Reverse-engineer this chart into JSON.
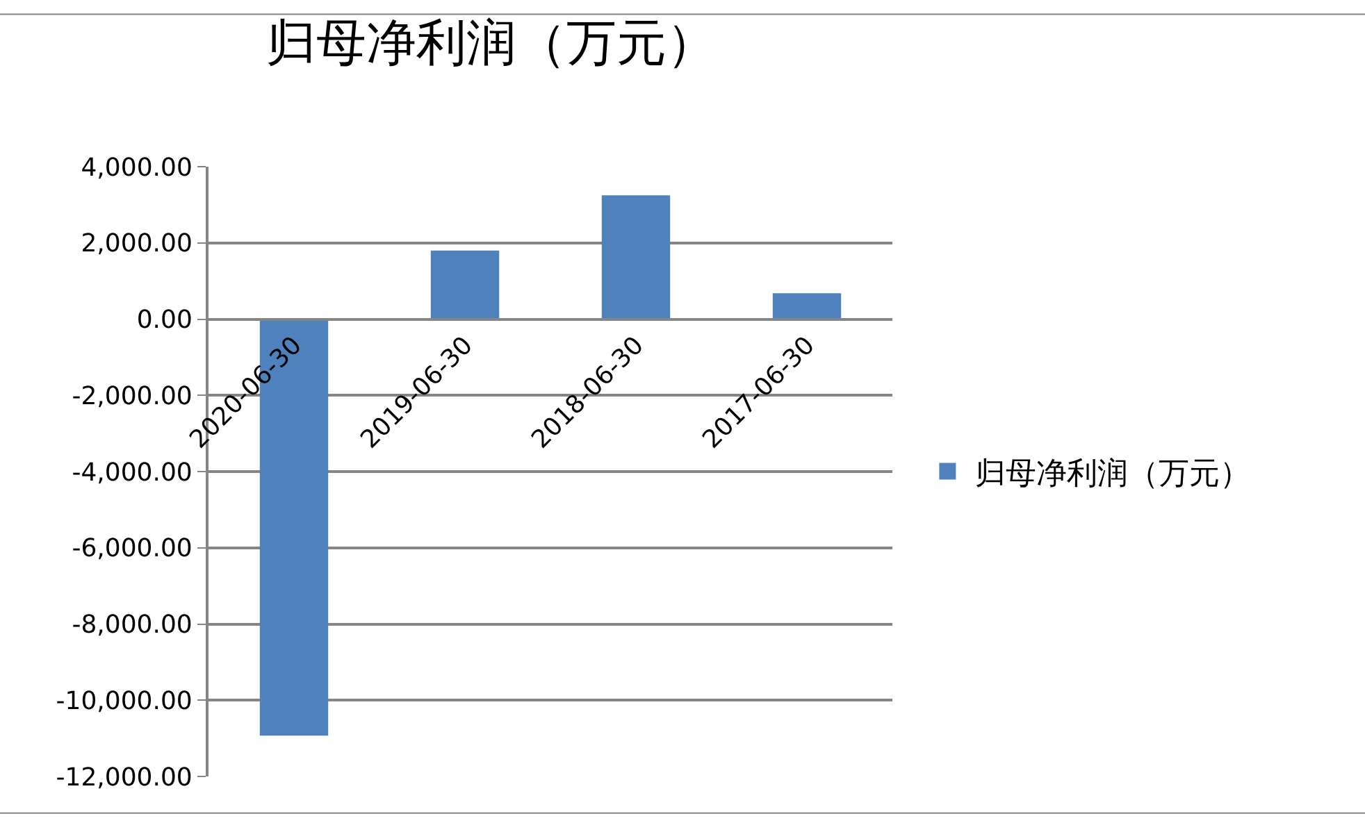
{
  "chart_data": {
    "type": "bar",
    "title": "归母净利润（万元）",
    "categories": [
      "2020-06-30",
      "2019-06-30",
      "2018-06-30",
      "2017-06-30"
    ],
    "series": [
      {
        "name": "归母净利润（万元）",
        "color": "#4f81bd",
        "values": [
          -10930,
          1800,
          3250,
          680
        ]
      }
    ],
    "ylim": [
      -12000,
      4000
    ],
    "yticks": [
      {
        "value": -12000,
        "label": "-12,000.00"
      },
      {
        "value": -10000,
        "label": "-10,000.00"
      },
      {
        "value": -8000,
        "label": "-8,000.00"
      },
      {
        "value": -6000,
        "label": "-6,000.00"
      },
      {
        "value": -4000,
        "label": "-4,000.00"
      },
      {
        "value": -2000,
        "label": "-2,000.00"
      },
      {
        "value": 0,
        "label": "0.00"
      },
      {
        "value": 2000,
        "label": "2,000.00"
      },
      {
        "value": 4000,
        "label": "4,000.00"
      }
    ],
    "grid": "y",
    "legend": "right"
  }
}
